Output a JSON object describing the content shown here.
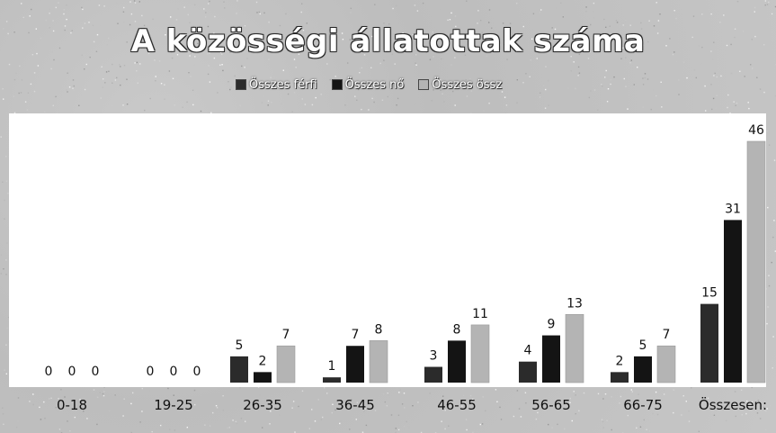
{
  "chart_data": {
    "type": "bar",
    "title": "A közösségi állatottak száma",
    "categories": [
      "0-18",
      "19-25",
      "26-35",
      "36-45",
      "46-55",
      "56-65",
      "66-75",
      "Összesen:"
    ],
    "series": [
      {
        "name": "Összes férfi",
        "color": "#2b2b2b",
        "values": [
          0,
          0,
          5,
          1,
          3,
          4,
          2,
          15
        ]
      },
      {
        "name": "Összes nő",
        "color": "#141414",
        "values": [
          0,
          0,
          2,
          7,
          8,
          9,
          5,
          31
        ]
      },
      {
        "name": "Összes össz",
        "color": "#b4b4b4",
        "values": [
          0,
          0,
          7,
          8,
          11,
          13,
          7,
          46
        ]
      }
    ],
    "ylim": [
      0,
      48
    ],
    "grid": false,
    "legend_position": "top"
  }
}
